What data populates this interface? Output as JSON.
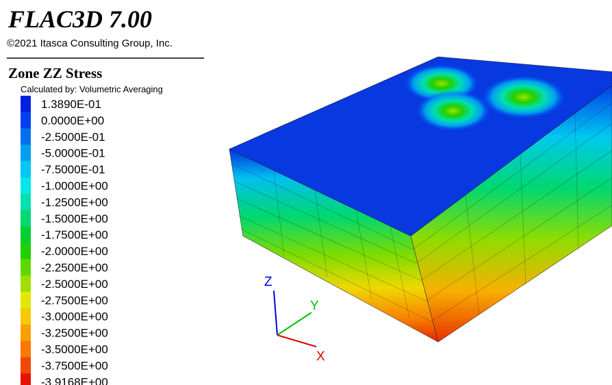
{
  "header": {
    "title": "FLAC3D 7.00",
    "copyright": "©2021 Itasca Consulting Group, Inc."
  },
  "legend": {
    "title": "Zone ZZ Stress",
    "subtitle": "Calculated by: Volumetric Averaging",
    "items": [
      {
        "label": "1.3890E-01",
        "color": "#0020e0"
      },
      {
        "label": "0.0000E+00",
        "color": "#0040f0"
      },
      {
        "label": "-2.5000E-01",
        "color": "#0070f0"
      },
      {
        "label": "-5.0000E-01",
        "color": "#00a0f0"
      },
      {
        "label": "-7.5000E-01",
        "color": "#00c8f0"
      },
      {
        "label": "-1.0000E+00",
        "color": "#00e8e8"
      },
      {
        "label": "-1.2500E+00",
        "color": "#00e0b0"
      },
      {
        "label": "-1.5000E+00",
        "color": "#00d870"
      },
      {
        "label": "-1.7500E+00",
        "color": "#00d030"
      },
      {
        "label": "-2.0000E+00",
        "color": "#20d000"
      },
      {
        "label": "-2.2500E+00",
        "color": "#60d800"
      },
      {
        "label": "-2.5000E+00",
        "color": "#a0e000"
      },
      {
        "label": "-2.7500E+00",
        "color": "#e0e800"
      },
      {
        "label": "-3.0000E+00",
        "color": "#f8c800"
      },
      {
        "label": "-3.2500E+00",
        "color": "#f8a000"
      },
      {
        "label": "-3.5000E+00",
        "color": "#f87800"
      },
      {
        "label": "-3.7500E+00",
        "color": "#f04800"
      },
      {
        "label": "-3.9168E+00",
        "color": "#e81000"
      }
    ]
  },
  "axes": {
    "x": "X",
    "y": "Y",
    "z": "Z"
  }
}
